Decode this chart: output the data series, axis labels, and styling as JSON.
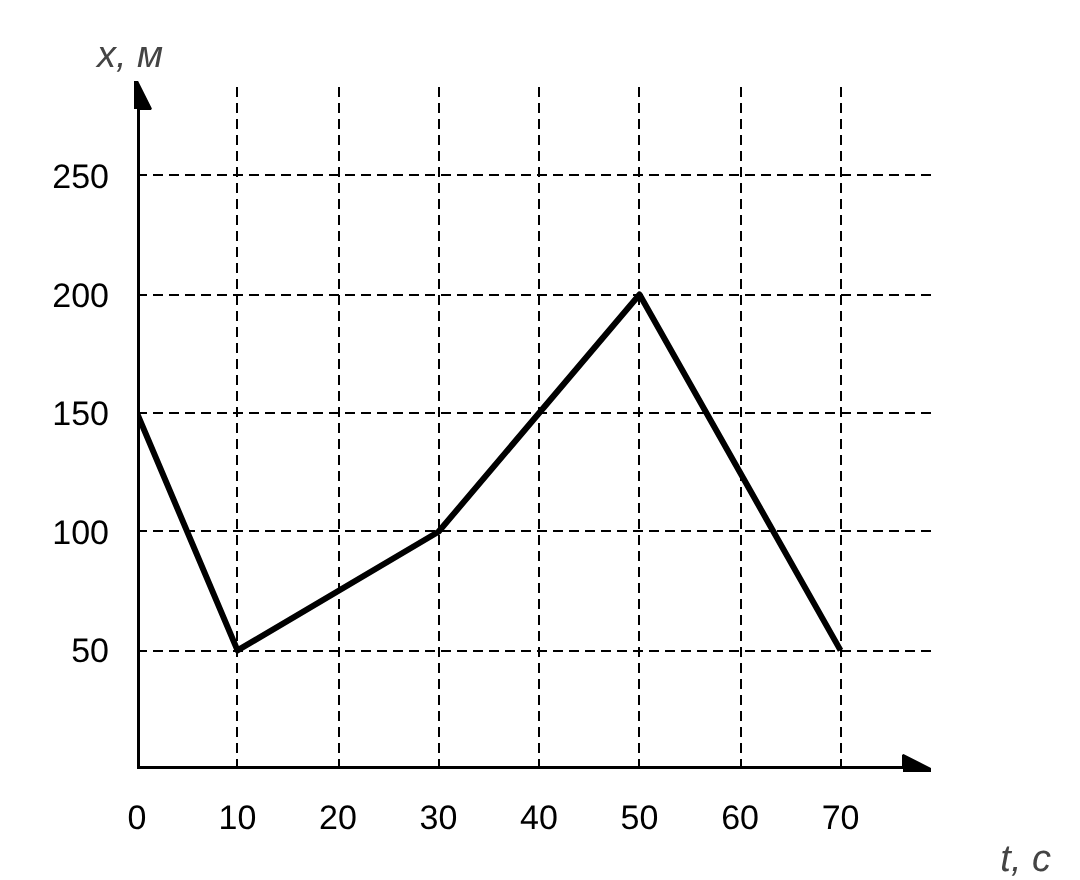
{
  "chart_data": {
    "type": "line",
    "xlabel": "t, с",
    "ylabel": "x, м",
    "x": [
      0,
      10,
      30,
      50,
      70
    ],
    "series": [
      {
        "color": "#000000",
        "values": [
          150,
          50,
          100,
          200,
          50
        ]
      }
    ],
    "xlim": [
      0,
      79
    ],
    "ylim": [
      0,
      290
    ],
    "xticks": [
      {
        "value": 0,
        "label": "0"
      },
      10,
      20,
      30,
      40,
      50,
      60,
      70
    ],
    "yticks": [
      50,
      100,
      150,
      200,
      250
    ],
    "grid": true,
    "line_style": "solid",
    "marker": "none"
  }
}
